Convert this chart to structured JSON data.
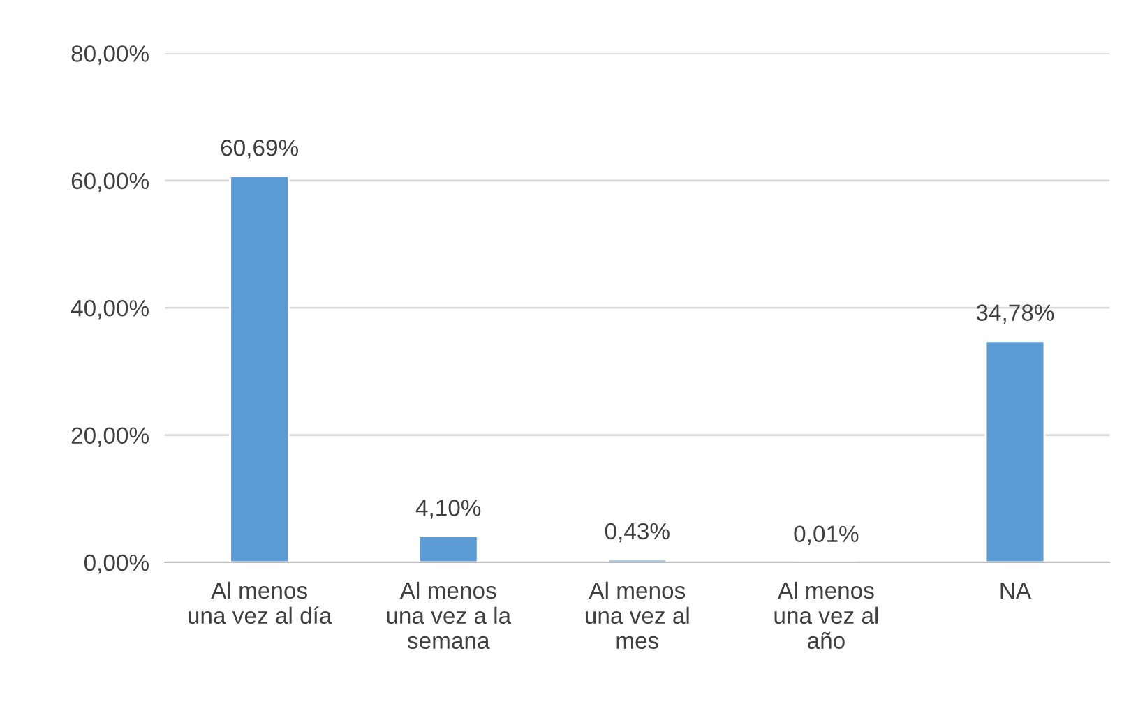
{
  "chart_data": {
    "type": "bar",
    "categories": [
      "Al menos\nuna vez al día",
      "Al menos\nuna vez a la\nsemana",
      "Al menos\nuna vez al\nmes",
      "Al menos\nuna vez al\naño",
      "NA"
    ],
    "values": [
      60.69,
      4.1,
      0.43,
      0.01,
      34.78
    ],
    "value_labels": [
      "60,69%",
      "4,10%",
      "0,43%",
      "0,01%",
      "34,78%"
    ],
    "color": "#5b9bd5",
    "ylim": [
      0,
      80
    ],
    "yticks": [
      {
        "value": 0,
        "label": "0,00%"
      },
      {
        "value": 20,
        "label": "20,00%"
      },
      {
        "value": 40,
        "label": "40,00%"
      },
      {
        "value": 60,
        "label": "60,00%"
      },
      {
        "value": 80,
        "label": "80,00%"
      }
    ],
    "grid": "y"
  }
}
